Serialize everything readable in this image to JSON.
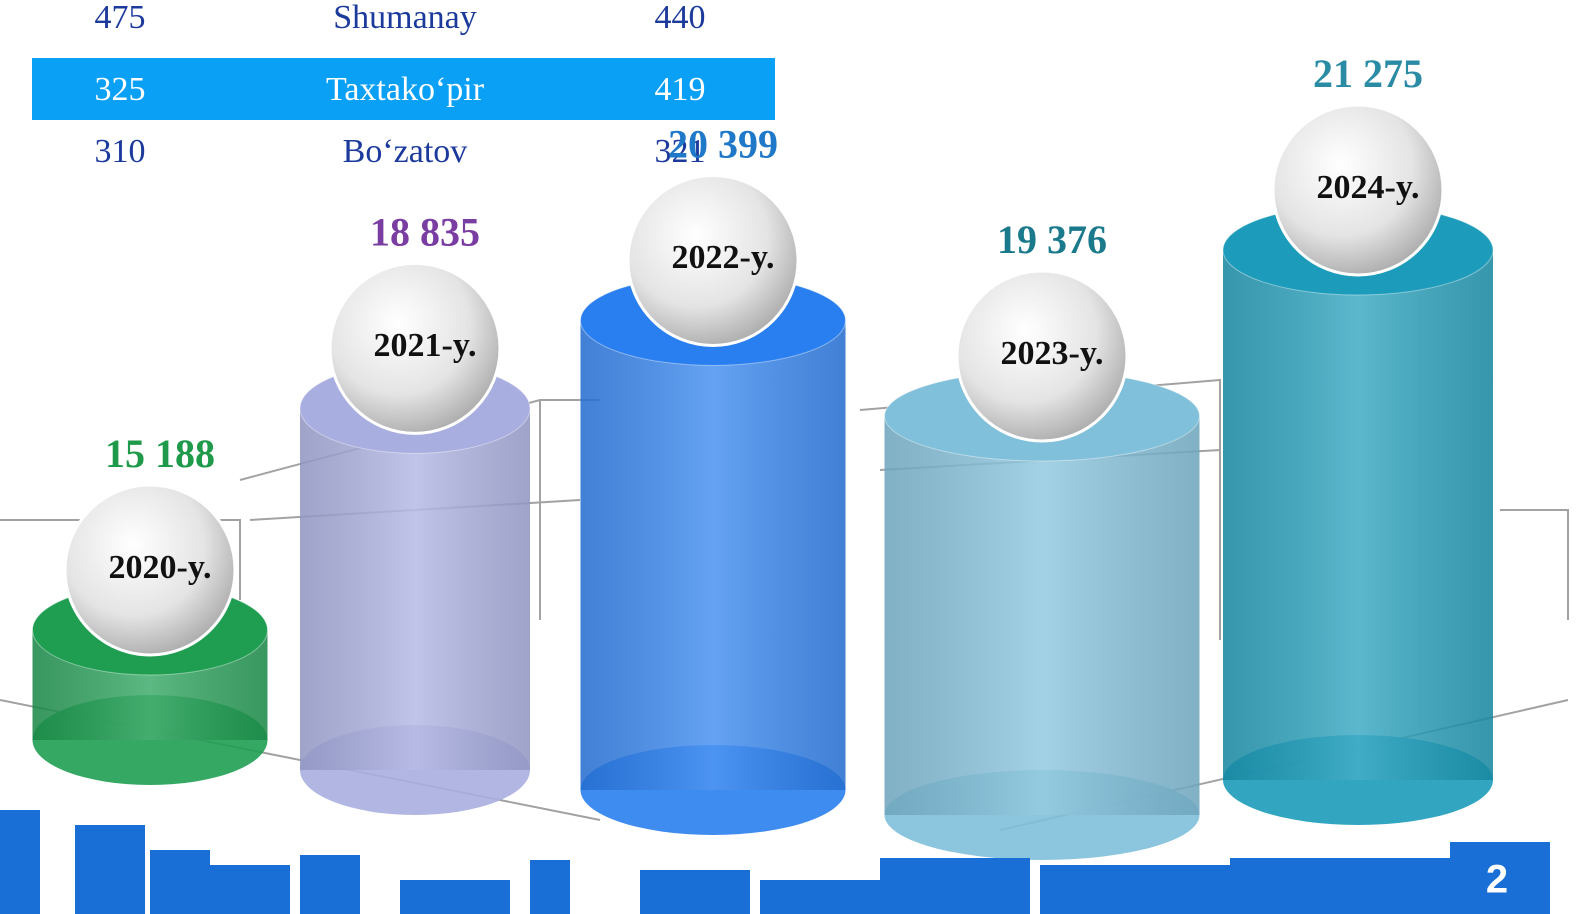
{
  "table": {
    "rows": [
      [
        475,
        "Shumanay",
        440
      ],
      [
        325,
        "Taxtako‘pir",
        419
      ],
      [
        310,
        "Bo‘zatov",
        321
      ]
    ]
  },
  "chart_data": {
    "type": "cylinder",
    "categories": [
      "2020-y.",
      "2021-y.",
      "2022-y.",
      "2023-y.",
      "2024-y."
    ],
    "values": [
      15188,
      18835,
      20399,
      19376,
      21275
    ],
    "value_labels": [
      "15 188",
      "18 835",
      "20 399",
      "19 376",
      "21 275"
    ],
    "colors": [
      "#1f9e52",
      "#a9aee0",
      "#2a7ff0",
      "#80c0da",
      "#1c9cba"
    ],
    "label_colors": [
      "#1e9a4a",
      "#7a3ea2",
      "#1f78c8",
      "#1a7a8c",
      "#2a8ca4"
    ]
  },
  "page_number": "2"
}
